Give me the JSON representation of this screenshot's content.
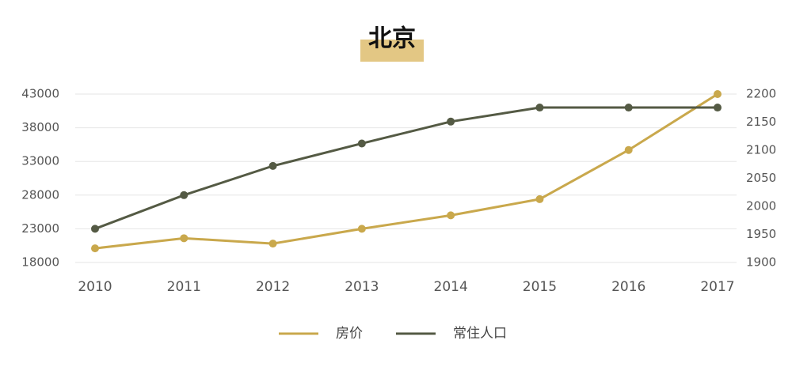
{
  "chart_data": {
    "type": "line",
    "title": "北京",
    "categories": [
      "2010",
      "2011",
      "2012",
      "2013",
      "2014",
      "2015",
      "2016",
      "2017"
    ],
    "series": [
      {
        "name": "房价",
        "color": "#c9a84c",
        "values": [
          20100,
          21600,
          20800,
          23000,
          25000,
          27400,
          34700,
          43000
        ]
      },
      {
        "name": "常住人口",
        "color": "#545a44",
        "axis": "y2",
        "values": [
          1960,
          2020,
          2072,
          2112,
          2151,
          2176,
          2176,
          2176
        ]
      }
    ],
    "ylim": [
      18000,
      43000
    ],
    "yticks": [
      18000,
      23000,
      28000,
      33000,
      38000,
      43000
    ],
    "y2lim": [
      1900,
      2200
    ],
    "y2ticks": [
      1900,
      1950,
      2000,
      2050,
      2100,
      2150,
      2200
    ],
    "grid": true,
    "legend": "bottom"
  }
}
